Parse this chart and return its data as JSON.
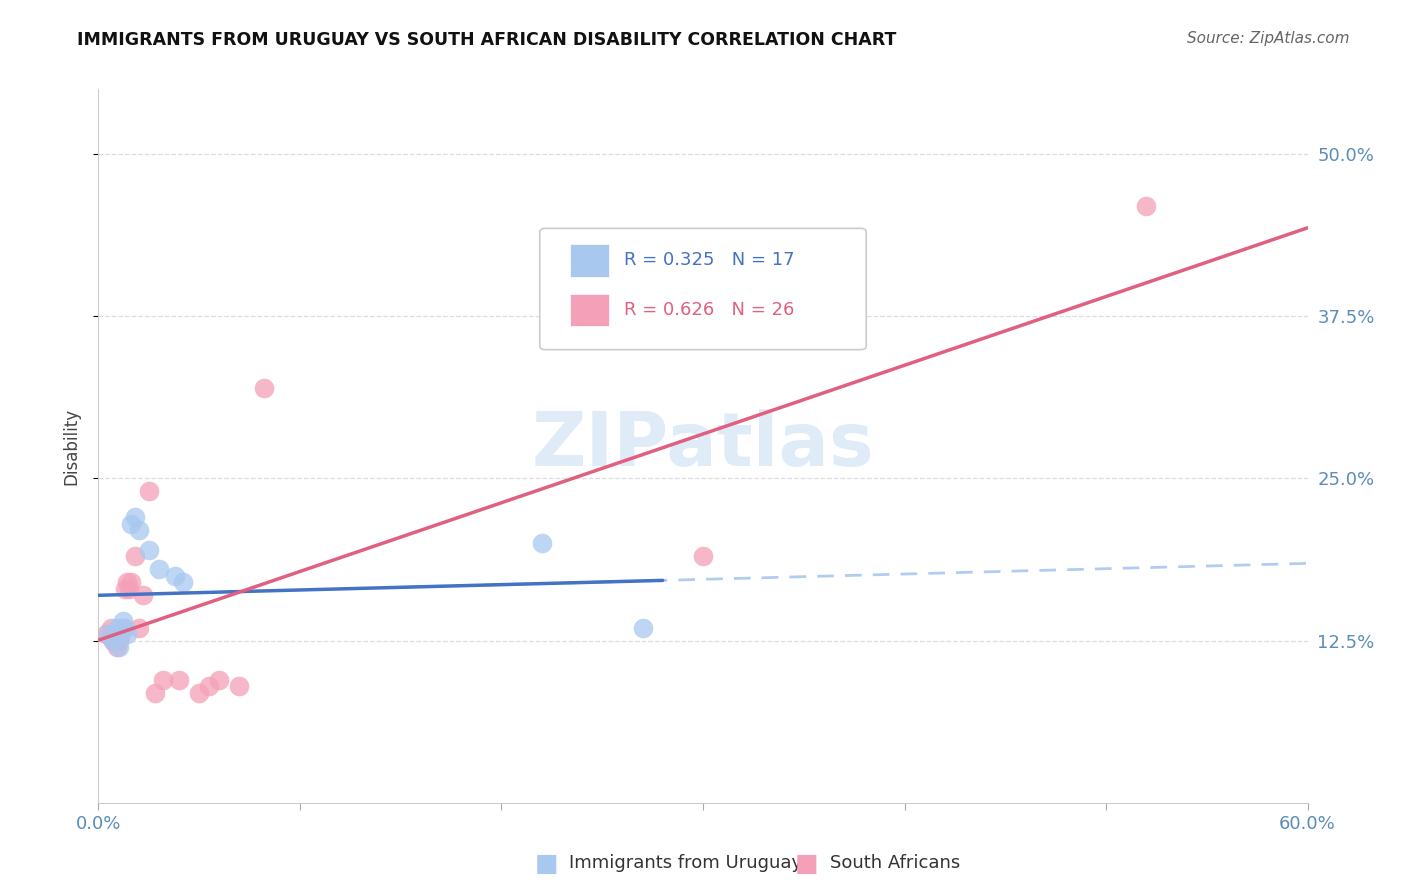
{
  "title": "IMMIGRANTS FROM URUGUAY VS SOUTH AFRICAN DISABILITY CORRELATION CHART",
  "source": "Source: ZipAtlas.com",
  "ylabel_label": "Disability",
  "xlim": [
    0.0,
    0.6
  ],
  "ylim": [
    0.0,
    0.55
  ],
  "x_ticks": [
    0.0,
    0.1,
    0.2,
    0.3,
    0.4,
    0.5,
    0.6
  ],
  "x_tick_labels": [
    "0.0%",
    "",
    "",
    "",
    "",
    "",
    "60.0%"
  ],
  "y_ticks": [
    0.125,
    0.25,
    0.375,
    0.5
  ],
  "y_tick_labels": [
    "12.5%",
    "25.0%",
    "37.5%",
    "50.0%"
  ],
  "uruguay_R": "R = 0.325",
  "uruguay_N": "N = 17",
  "sa_R": "R = 0.626",
  "sa_N": "N = 26",
  "uruguay_color": "#A8C8F0",
  "sa_color": "#F4A0B8",
  "uruguay_line_color": "#4472C4",
  "sa_line_color": "#E06080",
  "tick_color": "#5B8DB8",
  "watermark": "ZIPatlas",
  "uruguay_points_x": [
    0.005,
    0.007,
    0.009,
    0.01,
    0.011,
    0.012,
    0.013,
    0.014,
    0.016,
    0.018,
    0.02,
    0.025,
    0.03,
    0.038,
    0.042,
    0.22,
    0.27
  ],
  "uruguay_points_y": [
    0.13,
    0.125,
    0.135,
    0.12,
    0.135,
    0.14,
    0.135,
    0.13,
    0.215,
    0.22,
    0.21,
    0.195,
    0.18,
    0.175,
    0.17,
    0.2,
    0.135
  ],
  "sa_points_x": [
    0.004,
    0.006,
    0.007,
    0.008,
    0.009,
    0.01,
    0.011,
    0.012,
    0.013,
    0.014,
    0.015,
    0.016,
    0.018,
    0.02,
    0.022,
    0.025,
    0.028,
    0.032,
    0.04,
    0.05,
    0.055,
    0.06,
    0.07,
    0.082,
    0.3,
    0.52
  ],
  "sa_points_y": [
    0.13,
    0.135,
    0.125,
    0.125,
    0.12,
    0.125,
    0.13,
    0.135,
    0.165,
    0.17,
    0.165,
    0.17,
    0.19,
    0.135,
    0.16,
    0.24,
    0.085,
    0.095,
    0.095,
    0.085,
    0.09,
    0.095,
    0.09,
    0.32,
    0.19,
    0.46
  ],
  "background_color": "#FFFFFF",
  "grid_color": "#DDDDDD",
  "legend_box_color": "#EEEEEE"
}
